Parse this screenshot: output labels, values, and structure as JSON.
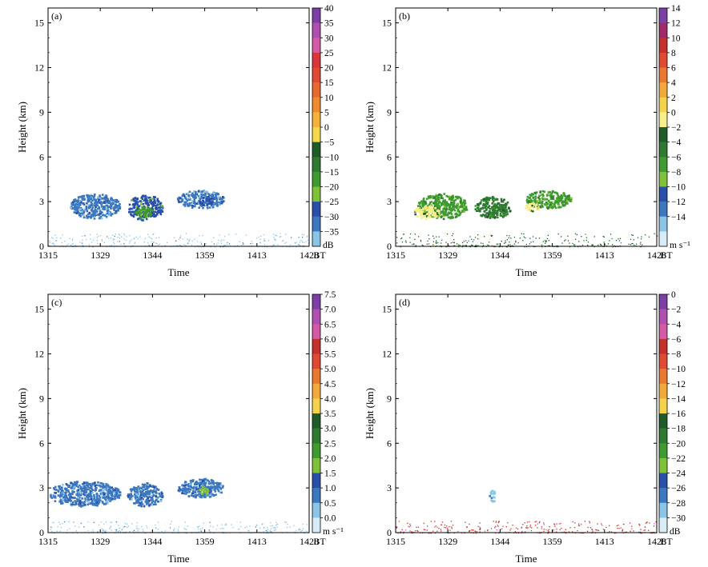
{
  "chart_data": [
    {
      "panel": "(a)",
      "type": "heatmap",
      "xlabel": "Time",
      "ylabel": "Height (km)",
      "x_ticks": [
        "1315",
        "1329",
        "1344",
        "1359",
        "1413",
        "1428"
      ],
      "y_ticks": [
        "0",
        "3",
        "6",
        "9",
        "12",
        "15"
      ],
      "ylim": [
        0,
        16
      ],
      "xlim_minutes": [
        0,
        73
      ],
      "x_unit_label": "BT",
      "colorbar": {
        "labels": [
          "40",
          "35",
          "30",
          "25",
          "20",
          "15",
          "10",
          "5",
          "0",
          "−5",
          "−10",
          "−15",
          "−20",
          "−25",
          "−30",
          "−35"
        ],
        "unit": "dB",
        "levels": 16,
        "colors": [
          "#7b3fa6",
          "#b04fb0",
          "#d55aa6",
          "#d9353a",
          "#e04a32",
          "#e8692e",
          "#f08a2e",
          "#f5b23a",
          "#f4d94a",
          "#1f5c2a",
          "#2f7a30",
          "#3f9a2f",
          "#7fc23a",
          "#2a4fa8",
          "#3c78c0",
          "#8cc4e6"
        ]
      },
      "series": [
        {
          "name": "echo cluster 1",
          "x_range_min": [
            6,
            20
          ],
          "y_range_km": [
            1.9,
            3.6
          ],
          "value_dB": -32
        },
        {
          "name": "echo core 2",
          "x_range_min": [
            22,
            32
          ],
          "y_range_km": [
            1.8,
            3.5
          ],
          "value_dB": -27
        },
        {
          "name": "echo core 2 max",
          "x_range_min": [
            24,
            29
          ],
          "y_range_km": [
            2.0,
            2.7
          ],
          "value_dB": -17
        },
        {
          "name": "echo cluster 3",
          "x_range_min": [
            36,
            49
          ],
          "y_range_km": [
            2.6,
            3.8
          ],
          "value_dB": -30
        },
        {
          "name": "echo core 3",
          "x_range_min": [
            42,
            46
          ],
          "y_range_km": [
            2.8,
            3.4
          ],
          "value_dB": -26
        },
        {
          "name": "near-surface clutter",
          "x_range_min": [
            0,
            73
          ],
          "y_range_km": [
            0,
            0.9
          ],
          "value_dB": -33
        }
      ]
    },
    {
      "panel": "(b)",
      "type": "heatmap",
      "xlabel": "Time",
      "ylabel": "Height (km)",
      "x_ticks": [
        "1315",
        "1329",
        "1344",
        "1359",
        "1413",
        "1428"
      ],
      "y_ticks": [
        "0",
        "3",
        "6",
        "9",
        "12",
        "15"
      ],
      "ylim": [
        0,
        16
      ],
      "xlim_minutes": [
        0,
        73
      ],
      "x_unit_label": "BT",
      "colorbar": {
        "labels": [
          "14",
          "12",
          "10",
          "8",
          "6",
          "4",
          "2",
          "0",
          "−2",
          "−4",
          "−6",
          "−8",
          "−10",
          "−12",
          "−14"
        ],
        "unit": "m s⁻¹",
        "levels": 16,
        "colors": [
          "#7b3fa6",
          "#a02a6a",
          "#c4302c",
          "#e04a32",
          "#e8792e",
          "#f2a83a",
          "#f4d34a",
          "#f7ee8c",
          "#1f5c2a",
          "#2f7a30",
          "#3f9a2f",
          "#7fc23a",
          "#2a4fa8",
          "#3c78c0",
          "#8cc4e6",
          "#d7ecf7"
        ]
      },
      "series": [
        {
          "name": "velocity cluster 1",
          "x_range_min": [
            6,
            20
          ],
          "y_range_km": [
            1.9,
            3.6
          ],
          "value_mps": -4
        },
        {
          "name": "velocity yellow patch 1",
          "x_range_min": [
            5,
            12
          ],
          "y_range_km": [
            1.9,
            2.8
          ],
          "value_mps": 1
        },
        {
          "name": "velocity core 2",
          "x_range_min": [
            22,
            32
          ],
          "y_range_km": [
            1.9,
            3.4
          ],
          "value_mps": -2
        },
        {
          "name": "velocity cluster 3",
          "x_range_min": [
            36,
            49
          ],
          "y_range_km": [
            2.6,
            3.8
          ],
          "value_mps": -5
        },
        {
          "name": "velocity yellow patch 3",
          "x_range_min": [
            36,
            40
          ],
          "y_range_km": [
            2.4,
            3.0
          ],
          "value_mps": 1
        },
        {
          "name": "near-surface mixed",
          "x_range_min": [
            0,
            73
          ],
          "y_range_km": [
            0,
            0.9
          ],
          "value_mps": 0
        }
      ]
    },
    {
      "panel": "(c)",
      "type": "heatmap",
      "xlabel": "Time",
      "ylabel": "Height (km)",
      "x_ticks": [
        "1315",
        "1329",
        "1344",
        "1359",
        "1413",
        "1428"
      ],
      "y_ticks": [
        "0",
        "3",
        "6",
        "9",
        "12",
        "15"
      ],
      "ylim": [
        0,
        16
      ],
      "xlim_minutes": [
        0,
        73
      ],
      "x_unit_label": "BT",
      "colorbar": {
        "labels": [
          "7.5",
          "7.0",
          "6.5",
          "6.0",
          "5.5",
          "5.0",
          "4.5",
          "4.0",
          "3.5",
          "3.0",
          "2.5",
          "2.0",
          "1.5",
          "1.0",
          "0.5",
          "0.0"
        ],
        "unit": "m s⁻¹",
        "levels": 16,
        "colors": [
          "#7b3fa6",
          "#b04fb0",
          "#d55aa6",
          "#c4302c",
          "#e04a32",
          "#e8792e",
          "#f2a83a",
          "#f4d34a",
          "#1f5c2a",
          "#2f7a30",
          "#3f9a2f",
          "#7fc23a",
          "#2a4fa8",
          "#3c78c0",
          "#8cc4e6",
          "#d7ecf7"
        ]
      },
      "series": [
        {
          "name": "spectral width cluster 1",
          "x_range_min": [
            0,
            20
          ],
          "y_range_km": [
            1.8,
            3.5
          ],
          "value_mps": 1.2
        },
        {
          "name": "spectral width core 2",
          "x_range_min": [
            22,
            32
          ],
          "y_range_km": [
            1.8,
            3.4
          ],
          "value_mps": 1.1
        },
        {
          "name": "spectral width cluster 3",
          "x_range_min": [
            36,
            49
          ],
          "y_range_km": [
            2.4,
            3.7
          ],
          "value_mps": 1.2
        },
        {
          "name": "spectral width max 3",
          "x_range_min": [
            42,
            45
          ],
          "y_range_km": [
            2.6,
            3.2
          ],
          "value_mps": 2.2
        },
        {
          "name": "near-surface",
          "x_range_min": [
            0,
            73
          ],
          "y_range_km": [
            0,
            0.8
          ],
          "value_mps": 0.6
        }
      ]
    },
    {
      "panel": "(d)",
      "type": "heatmap",
      "xlabel": "Time",
      "ylabel": "Height (km)",
      "x_ticks": [
        "1315",
        "1329",
        "1344",
        "1359",
        "1413",
        "1428"
      ],
      "y_ticks": [
        "0",
        "3",
        "6",
        "9",
        "12",
        "15"
      ],
      "ylim": [
        0,
        16
      ],
      "xlim_minutes": [
        0,
        73
      ],
      "x_unit_label": "BT",
      "colorbar": {
        "labels": [
          "0",
          "−2",
          "−4",
          "−6",
          "−8",
          "−10",
          "−12",
          "−14",
          "−16",
          "−18",
          "−20",
          "−22",
          "−24",
          "−26",
          "−28",
          "−30"
        ],
        "unit": "dB",
        "levels": 16,
        "colors": [
          "#7b3fa6",
          "#b04fb0",
          "#d55aa6",
          "#c4302c",
          "#e04a32",
          "#e8792e",
          "#f2a83a",
          "#f4d34a",
          "#1f5c2a",
          "#2f7a30",
          "#3f9a2f",
          "#7fc23a",
          "#2a4fa8",
          "#3c78c0",
          "#8cc4e6",
          "#d7ecf7"
        ]
      },
      "series": [
        {
          "name": "LDR patch",
          "x_range_min": [
            26,
            28
          ],
          "y_range_km": [
            2.1,
            2.9
          ],
          "value_dB": -27
        },
        {
          "name": "near-surface",
          "x_range_min": [
            0,
            73
          ],
          "y_range_km": [
            0,
            0.8
          ],
          "value_dB": -5
        }
      ]
    }
  ]
}
